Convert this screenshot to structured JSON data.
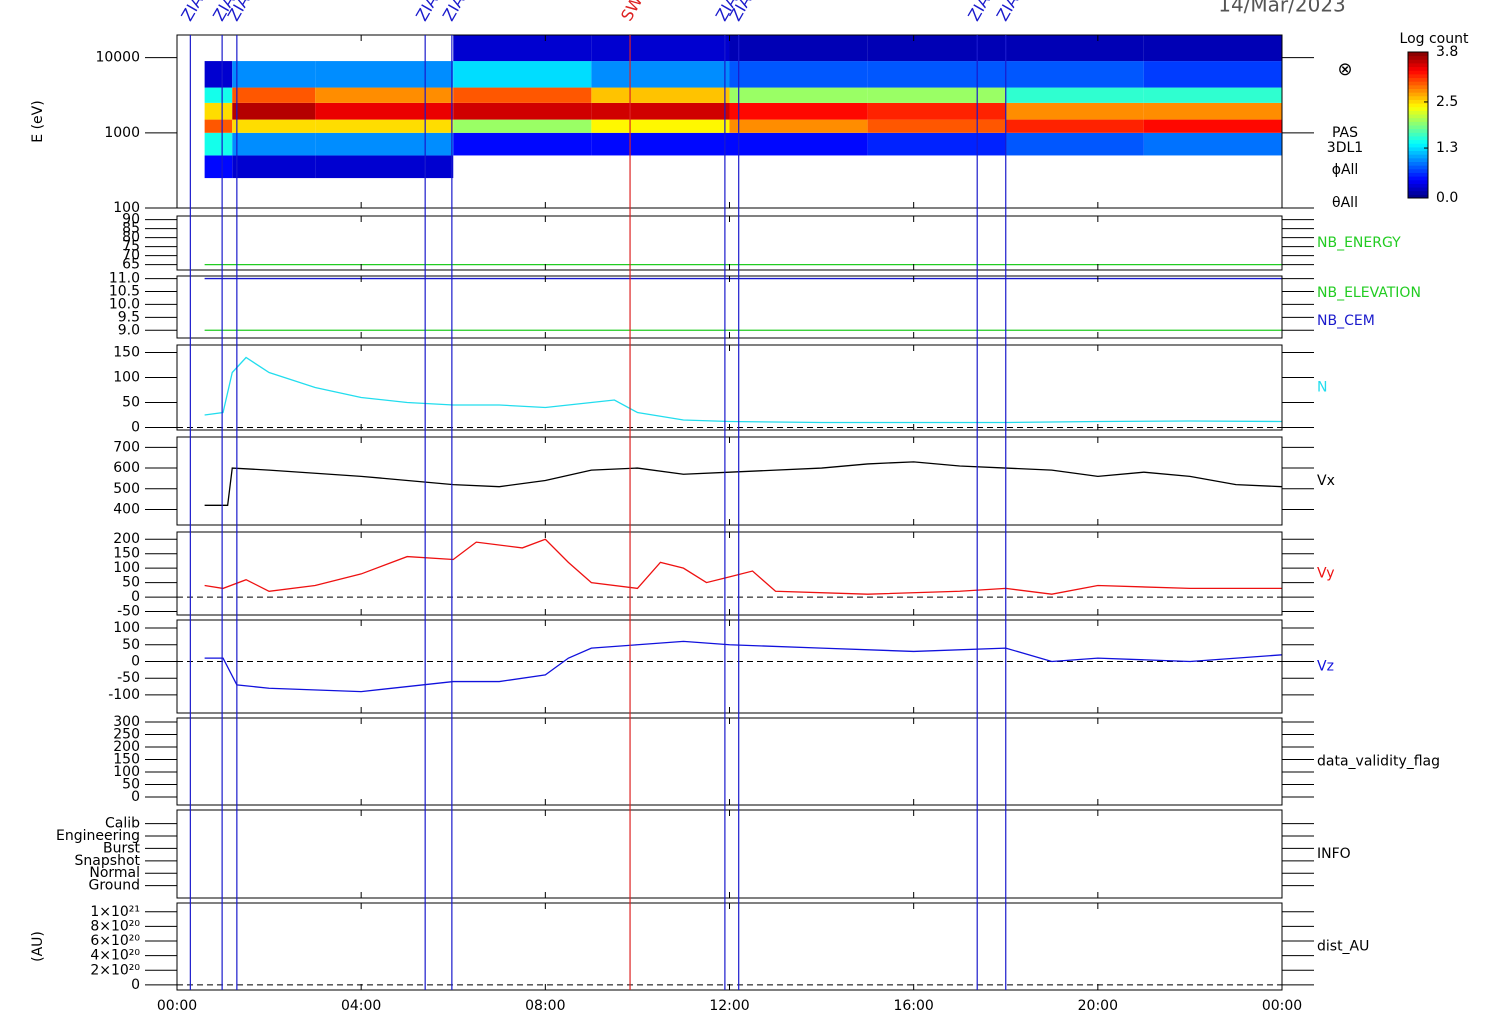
{
  "chart_data": [
    {
      "type": "spectrogram",
      "title": "14/Mar/2023",
      "ylabel": "E (eV)",
      "log": true,
      "xlim": [
        0,
        24
      ],
      "ylim": [
        100,
        20000
      ],
      "yticks": [
        100,
        1000,
        10000
      ],
      "xbins": [
        0.6,
        1.2,
        3,
        6,
        9,
        12,
        15,
        18,
        21,
        24
      ],
      "ybins": [
        250,
        500,
        1000,
        1500,
        2500,
        4000,
        9000,
        20000
      ],
      "values": [
        [
          0.5,
          1.5,
          3.0,
          2.5,
          1.5,
          0.3,
          null
        ],
        [
          0.3,
          1.0,
          2.5,
          3.6,
          3.0,
          1.0,
          null
        ],
        [
          0.3,
          1.0,
          2.5,
          3.4,
          2.8,
          1.0,
          null
        ],
        [
          null,
          0.5,
          2.0,
          3.5,
          3.0,
          1.3,
          0.3
        ],
        [
          null,
          0.5,
          2.4,
          3.5,
          2.6,
          1.0,
          0.3
        ],
        [
          null,
          0.5,
          2.8,
          3.3,
          2.0,
          0.8,
          0.2
        ],
        [
          null,
          0.6,
          3.0,
          3.2,
          2.0,
          0.8,
          0.2
        ],
        [
          null,
          0.8,
          3.2,
          2.8,
          1.6,
          0.8,
          0.2
        ],
        [
          null,
          0.9,
          3.3,
          2.8,
          1.6,
          0.7,
          0.2
        ]
      ],
      "colorbar": {
        "title": "Log count",
        "lim": [
          0,
          3.8
        ],
        "ticks": [
          3.8,
          2.5,
          1.3,
          {
            "value": 0,
            "label": "0.0"
          }
        ]
      },
      "symbol": "⊗",
      "side_labels": [
        "PAS",
        "3DL1",
        "ϕAll",
        "θAll"
      ],
      "annotations": [
        {
          "x": 0.29,
          "label": "ZIA",
          "color": "#1a1acc"
        },
        {
          "x": 0.98,
          "label": "ZIA",
          "color": "#1a1acc"
        },
        {
          "x": 1.3,
          "label": "ZIAS",
          "color": "#1a1acc"
        },
        {
          "x": 5.39,
          "label": "ZIA",
          "color": "#1a1acc"
        },
        {
          "x": 5.97,
          "label": "ZIAS",
          "color": "#1a1acc"
        },
        {
          "x": 9.84,
          "label": "SW",
          "color": "#dd2222"
        },
        {
          "x": 11.9,
          "label": "ZIA",
          "color": "#1a1acc"
        },
        {
          "x": 12.2,
          "label": "ZIAS",
          "color": "#1a1acc"
        },
        {
          "x": 17.38,
          "label": "ZIA",
          "color": "#1a1acc"
        },
        {
          "x": 18.0,
          "label": "ZIAS",
          "color": "#1a1acc"
        }
      ]
    },
    {
      "type": "line",
      "xlim": [
        0,
        24
      ],
      "ylim": [
        62,
        92
      ],
      "yticks": [
        65,
        70,
        75,
        80,
        85,
        90
      ],
      "series": [
        {
          "name": "NB_ENERGY",
          "color": "#22cc22",
          "x": [
            0.6,
            24
          ],
          "values": [
            65,
            65
          ]
        }
      ]
    },
    {
      "type": "line",
      "xlim": [
        0,
        24
      ],
      "ylim": [
        8.7,
        11.1
      ],
      "yticks": [
        {
          "value": 9,
          "label": "9.0"
        },
        9.5,
        {
          "value": 10,
          "label": "10.0"
        },
        10.5,
        {
          "value": 11,
          "label": "11.0"
        }
      ],
      "series": [
        {
          "name": "NB_ELEVATION",
          "color": "#22cc22",
          "x": [
            0.6,
            24
          ],
          "values": [
            9,
            9
          ]
        },
        {
          "name": "NB_CEM",
          "color": "#1a1acc",
          "x": [
            0.6,
            24
          ],
          "values": [
            11,
            11
          ]
        }
      ]
    },
    {
      "type": "line",
      "xlim": [
        0,
        24
      ],
      "ylim": [
        -5,
        165
      ],
      "yticks": [
        0,
        50,
        100,
        150
      ],
      "zero_line": true,
      "series": [
        {
          "name": "N",
          "color": "#22ddee",
          "x": [
            0.6,
            1,
            1.2,
            1.5,
            2,
            3,
            4,
            5,
            6,
            7,
            8,
            9,
            9.5,
            10,
            11,
            12,
            14,
            16,
            18,
            20,
            22,
            24
          ],
          "values": [
            25,
            30,
            110,
            140,
            110,
            80,
            60,
            50,
            45,
            45,
            40,
            50,
            55,
            30,
            15,
            12,
            10,
            10,
            10,
            12,
            13,
            12
          ]
        }
      ]
    },
    {
      "type": "line",
      "xlim": [
        0,
        24
      ],
      "ylim": [
        325,
        750
      ],
      "yticks": [
        400,
        500,
        600,
        700
      ],
      "series": [
        {
          "name": "Vx",
          "color": "#000000",
          "x": [
            0.6,
            1.1,
            1.2,
            2,
            4,
            6,
            7,
            8,
            9,
            10,
            11,
            12,
            13,
            14,
            15,
            16,
            17,
            18,
            19,
            20,
            21,
            22,
            23,
            24
          ],
          "values": [
            420,
            420,
            600,
            590,
            560,
            520,
            510,
            540,
            590,
            600,
            570,
            580,
            590,
            600,
            620,
            630,
            610,
            600,
            590,
            560,
            580,
            560,
            520,
            510
          ]
        }
      ]
    },
    {
      "type": "line",
      "xlim": [
        0,
        24
      ],
      "ylim": [
        -62,
        225
      ],
      "yticks": [
        -50,
        0,
        50,
        100,
        150,
        200
      ],
      "zero_line": true,
      "series": [
        {
          "name": "Vy",
          "color": "#ee1111",
          "x": [
            0.6,
            1,
            1.5,
            2,
            3,
            4,
            5,
            6,
            6.5,
            7.5,
            8,
            8.5,
            9,
            10,
            10.5,
            11,
            11.5,
            12,
            12.5,
            13,
            15,
            17,
            18,
            19,
            20,
            22,
            24
          ],
          "values": [
            40,
            30,
            60,
            20,
            40,
            80,
            140,
            130,
            190,
            170,
            200,
            120,
            50,
            30,
            120,
            100,
            50,
            70,
            90,
            20,
            10,
            20,
            30,
            10,
            40,
            30,
            30
          ]
        }
      ]
    },
    {
      "type": "line",
      "xlim": [
        0,
        24
      ],
      "ylim": [
        -154,
        124
      ],
      "yticks": [
        -100,
        -50,
        0,
        50,
        100
      ],
      "zero_line": true,
      "series": [
        {
          "name": "Vz",
          "color": "#1111dd",
          "x": [
            0.6,
            1,
            1.3,
            2,
            4,
            6,
            7,
            8,
            8.5,
            9,
            10,
            11,
            12,
            14,
            16,
            18,
            19,
            20,
            22,
            24
          ],
          "values": [
            10,
            10,
            -70,
            -80,
            -90,
            -60,
            -60,
            -40,
            10,
            40,
            50,
            60,
            50,
            40,
            30,
            40,
            0,
            10,
            0,
            20
          ]
        }
      ]
    },
    {
      "type": "line",
      "label": "data_validity_flag",
      "xlim": [
        0,
        24
      ],
      "ylim": [
        -32,
        316
      ],
      "yticks": [
        0,
        50,
        100,
        150,
        200,
        250,
        300
      ]
    },
    {
      "type": "line",
      "label": "INFO",
      "xlim": [
        0,
        24
      ],
      "ylim": [
        -1,
        6.1
      ],
      "yticks": [
        {
          "value": 5,
          "label": "Calib"
        },
        {
          "value": 4,
          "label": "Engineering"
        },
        {
          "value": 3,
          "label": "Burst"
        },
        {
          "value": 2,
          "label": "Snapshot"
        },
        {
          "value": 1,
          "label": "Normal"
        },
        {
          "value": 0,
          "label": "Ground"
        }
      ]
    },
    {
      "type": "line",
      "label": "dist_AU",
      "ylabel": "(AU)",
      "xlim": [
        0,
        24
      ],
      "ylim": [
        -7e+19,
        1.12e+21
      ],
      "zero_line": true,
      "yticks": [
        0,
        {
          "value": 2e+20,
          "label": "2×10²⁰"
        },
        {
          "value": 4e+20,
          "label": "4×10²⁰"
        },
        {
          "value": 6e+20,
          "label": "6×10²⁰"
        },
        {
          "value": 8e+20,
          "label": "8×10²⁰"
        },
        {
          "value": 1e+21,
          "label": "1×10²¹"
        }
      ],
      "xticks": [
        {
          "value": 0,
          "label": "00:00"
        },
        {
          "value": 4,
          "label": "04:00"
        },
        {
          "value": 8,
          "label": "08:00"
        },
        {
          "value": 12,
          "label": "12:00"
        },
        {
          "value": 16,
          "label": "16:00"
        },
        {
          "value": 20,
          "label": "20:00"
        },
        {
          "value": 24,
          "label": "00:00"
        }
      ]
    }
  ]
}
